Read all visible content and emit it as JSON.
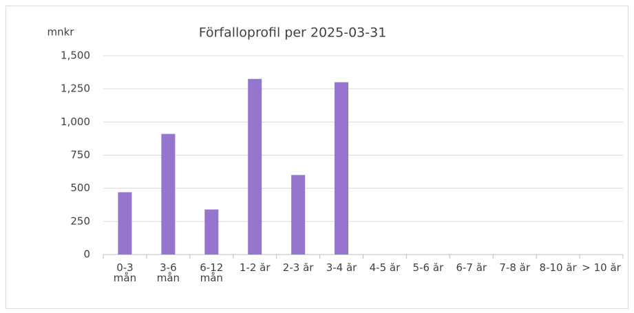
{
  "chart_data": {
    "type": "bar",
    "title": "Förfalloprofil per 2025-03-31",
    "y_label": "mnkr",
    "categories": [
      "0-3 mån",
      "3-6 mån",
      "6-12 mån",
      "1-2 år",
      "2-3 år",
      "3-4 år",
      "4-5 år",
      "5-6 år",
      "6-7 år",
      "7-8 år",
      "8-10 år",
      "> 10 år"
    ],
    "values": [
      470,
      910,
      340,
      1325,
      600,
      1300,
      0,
      0,
      0,
      0,
      0,
      0
    ],
    "color": "#9575cd",
    "ylim": [
      0,
      1500
    ],
    "yticks": [
      0,
      250,
      500,
      750,
      {
        "value": 1000,
        "label": "1,000"
      },
      {
        "value": 1250,
        "label": "1,250"
      },
      {
        "value": 1500,
        "label": "1,500"
      }
    ],
    "grid": true
  }
}
